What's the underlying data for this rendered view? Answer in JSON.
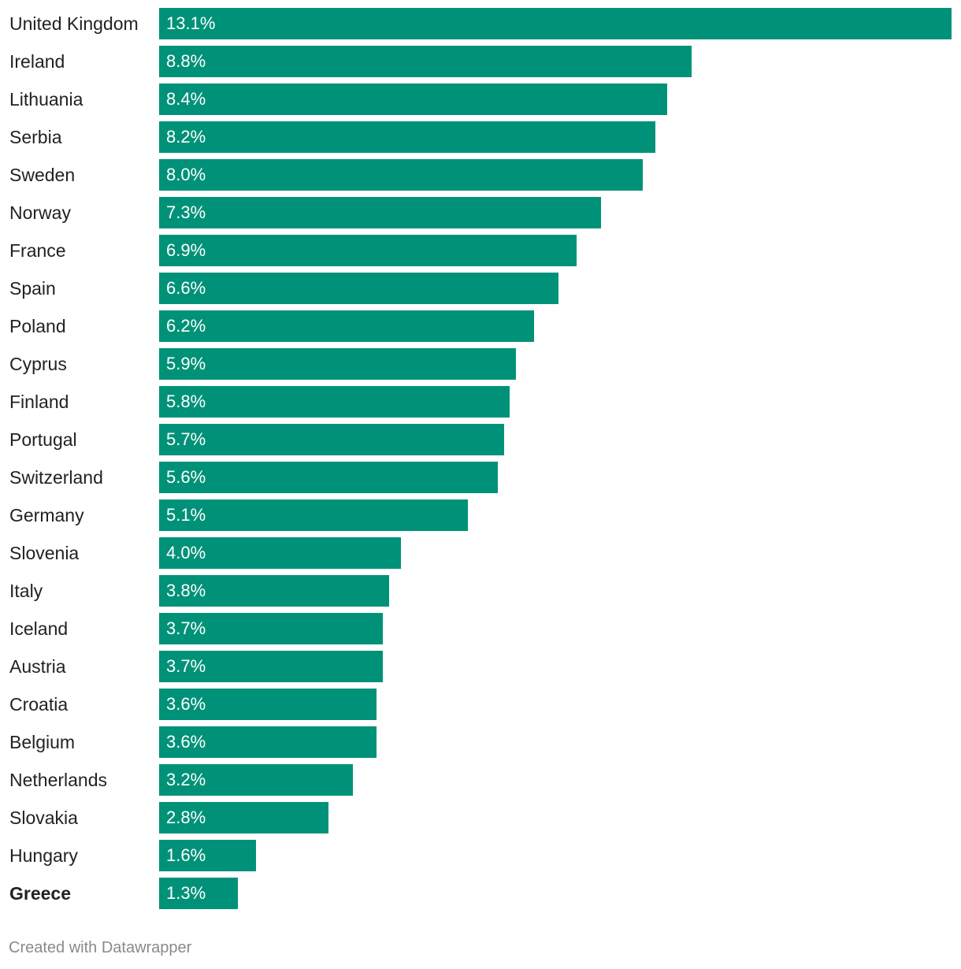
{
  "chart_data": {
    "type": "bar",
    "orientation": "horizontal",
    "categories": [
      "United Kingdom",
      "Ireland",
      "Lithuania",
      "Serbia",
      "Sweden",
      "Norway",
      "France",
      "Spain",
      "Poland",
      "Cyprus",
      "Finland",
      "Portugal",
      "Switzerland",
      "Germany",
      "Slovenia",
      "Italy",
      "Iceland",
      "Austria",
      "Croatia",
      "Belgium",
      "Netherlands",
      "Slovakia",
      "Hungary",
      "Greece"
    ],
    "values": [
      13.1,
      8.8,
      8.4,
      8.2,
      8.0,
      7.3,
      6.9,
      6.6,
      6.2,
      5.9,
      5.8,
      5.7,
      5.6,
      5.1,
      4.0,
      3.8,
      3.7,
      3.7,
      3.6,
      3.6,
      3.2,
      2.8,
      1.6,
      1.3
    ],
    "value_labels": [
      "13.1%",
      "8.8%",
      "8.4%",
      "8.2%",
      "8.0%",
      "7.3%",
      "6.9%",
      "6.6%",
      "6.2%",
      "5.9%",
      "5.8%",
      "5.7%",
      "5.6%",
      "5.1%",
      "4.0%",
      "3.8%",
      "3.7%",
      "3.7%",
      "3.6%",
      "3.6%",
      "3.2%",
      "2.8%",
      "1.6%",
      "1.3%"
    ],
    "highlighted": [
      "Greece"
    ],
    "bar_color": "#009278",
    "value_label_color": "#ffffff",
    "xlim": [
      0,
      13.1
    ],
    "grid": false,
    "legend": "none"
  },
  "footer": {
    "credit": "Created with Datawrapper"
  }
}
